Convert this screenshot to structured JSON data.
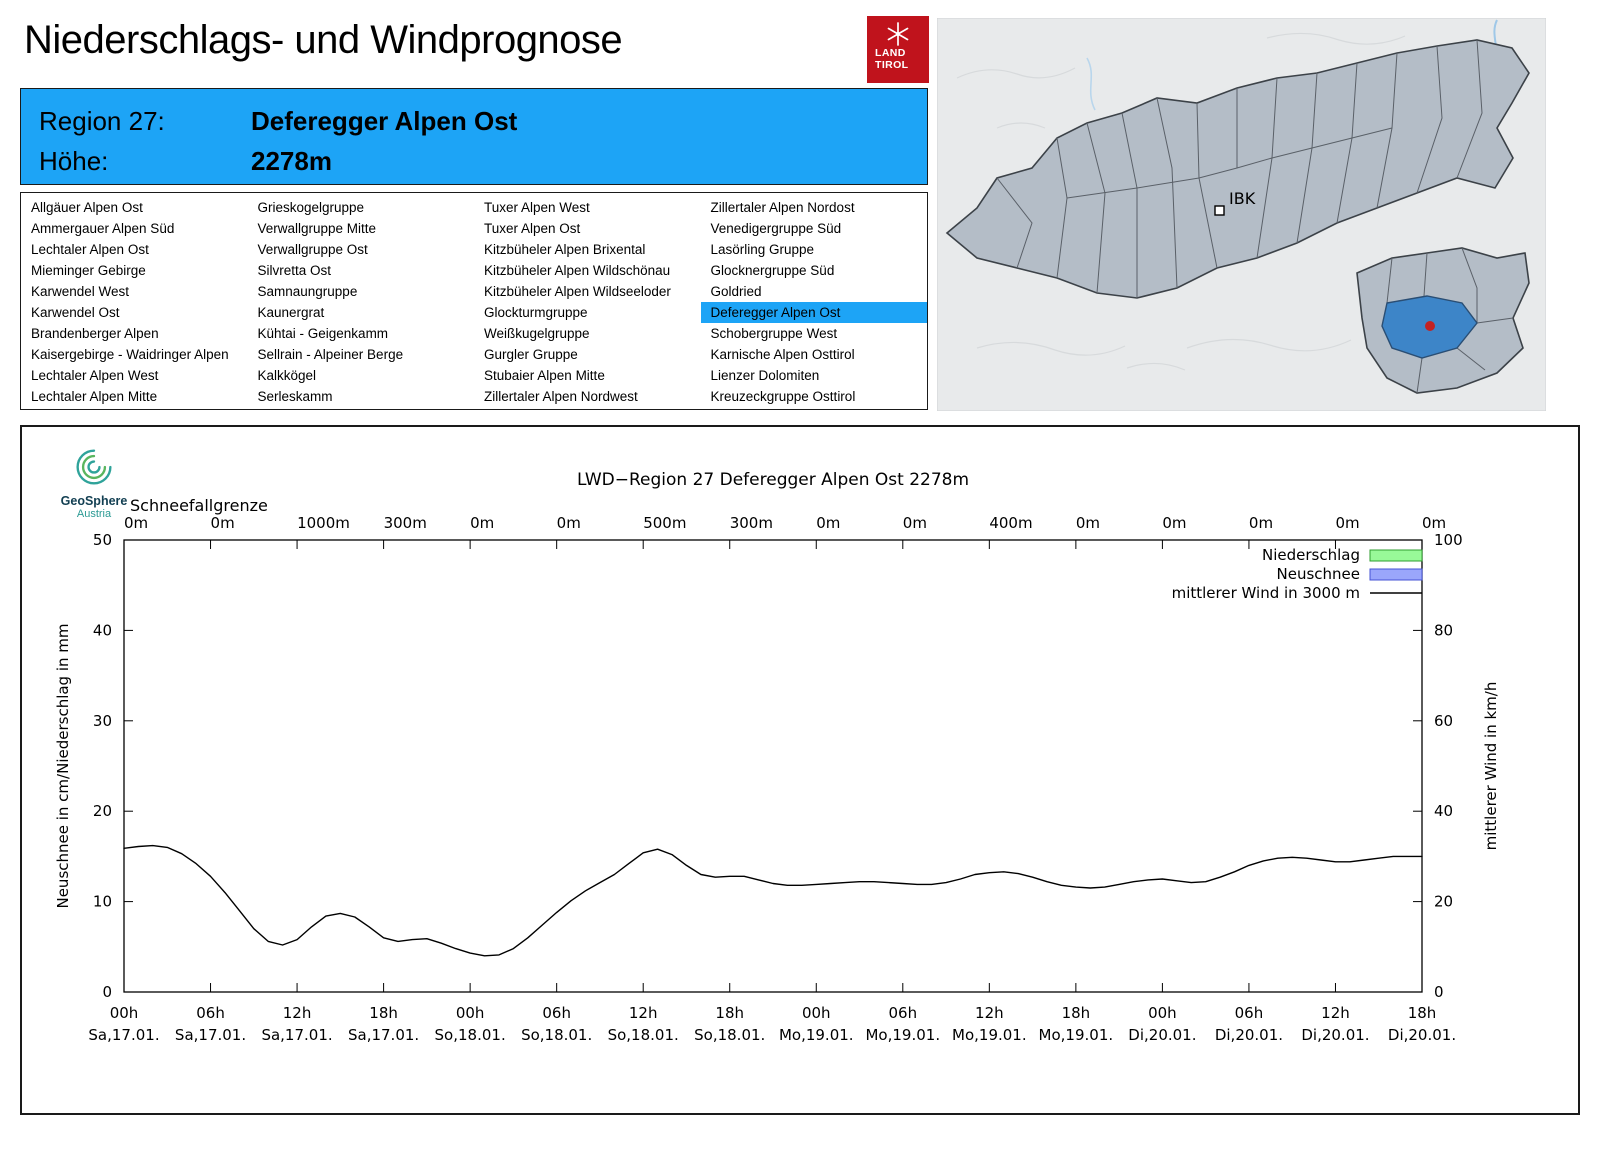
{
  "header": {
    "title": "Niederschlags- und Windprognose",
    "logo": {
      "line1": "LAND",
      "line2": "TIROL",
      "color": "#c0131c"
    }
  },
  "region_banner": {
    "background": "#1da4f6",
    "region_label": "Region 27:",
    "region_name": "Deferegger Alpen Ost",
    "altitude_label": "Höhe:",
    "altitude_value": "2278m"
  },
  "region_table": {
    "selected": "Deferegger Alpen Ost",
    "selected_color": "#1da4f6",
    "columns": [
      [
        "Allgäuer Alpen Ost",
        "Ammergauer Alpen Süd",
        "Lechtaler Alpen Ost",
        "Mieminger Gebirge",
        "Karwendel West",
        "Karwendel Ost",
        "Brandenberger Alpen",
        "Kaisergebirge - Waidringer Alpen",
        "Lechtaler Alpen West",
        "Lechtaler Alpen Mitte"
      ],
      [
        "Grieskogelgruppe",
        "Verwallgruppe Mitte",
        "Verwallgruppe Ost",
        "Silvretta Ost",
        "Samnaungruppe",
        "Kaunergrat",
        "Kühtai - Geigenkamm",
        "Sellrain - Alpeiner Berge",
        "Kalkkögel",
        "Serleskamm"
      ],
      [
        "Tuxer Alpen West",
        "Tuxer Alpen Ost",
        "Kitzbüheler Alpen Brixental",
        "Kitzbüheler Alpen Wildschönau",
        "Kitzbüheler Alpen Wildseeloder",
        "Glockturmgruppe",
        "Weißkugelgruppe",
        "Gurgler Gruppe",
        "Stubaier Alpen Mitte",
        "Zillertaler Alpen Nordwest"
      ],
      [
        "Zillertaler Alpen Nordost",
        "Venedigergruppe Süd",
        "Lasörling Gruppe",
        "Glocknergruppe Süd",
        "Goldried",
        "Deferegger Alpen Ost",
        "Schobergruppe West",
        "Karnische Alpen Osttirol",
        "Lienzer Dolomiten",
        "Kreuzeckgruppe Osttirol"
      ]
    ]
  },
  "map": {
    "city_label": "IBK",
    "highlight_color": "#3d85c8",
    "marker_color": "#c32222"
  },
  "chart_brand": {
    "name": "GeoSphere",
    "sub": "Austria"
  },
  "chart_data": {
    "type": "line",
    "title": "LWD−Region 27 Deferegger Alpen Ost 2278m",
    "ylabel_left": "Neuschnee in cm/Niederschlag in mm",
    "ylabel_right": "mittlerer Wind in km/h",
    "ylim_left": [
      0,
      50
    ],
    "ylim_right": [
      0,
      100
    ],
    "x_hours_range": [
      0,
      90
    ],
    "grid": false,
    "legend_position": "top-right",
    "schneefallgrenze_label": "Schneefallgrenze",
    "schneefallgrenze_values": [
      "0m",
      "0m",
      "1000m",
      "300m",
      "0m",
      "0m",
      "500m",
      "300m",
      "0m",
      "0m",
      "400m",
      "0m",
      "0m",
      "0m",
      "0m",
      "0m"
    ],
    "x_ticks": [
      {
        "hour": "00h",
        "day": "Sa,17.01."
      },
      {
        "hour": "06h",
        "day": "Sa,17.01."
      },
      {
        "hour": "12h",
        "day": "Sa,17.01."
      },
      {
        "hour": "18h",
        "day": "Sa,17.01."
      },
      {
        "hour": "00h",
        "day": "So,18.01."
      },
      {
        "hour": "06h",
        "day": "So,18.01."
      },
      {
        "hour": "12h",
        "day": "So,18.01."
      },
      {
        "hour": "18h",
        "day": "So,18.01."
      },
      {
        "hour": "00h",
        "day": "Mo,19.01."
      },
      {
        "hour": "06h",
        "day": "Mo,19.01."
      },
      {
        "hour": "12h",
        "day": "Mo,19.01."
      },
      {
        "hour": "18h",
        "day": "Mo,19.01."
      },
      {
        "hour": "00h",
        "day": "Di,20.01."
      },
      {
        "hour": "06h",
        "day": "Di,20.01."
      },
      {
        "hour": "12h",
        "day": "Di,20.01."
      },
      {
        "hour": "18h",
        "day": "Di,20.01."
      }
    ],
    "legend": [
      {
        "label": "Niederschlag",
        "type": "box",
        "fill": "#98f998",
        "stroke": "#2f9e2f"
      },
      {
        "label": "Neuschnee",
        "type": "box",
        "fill": "#9aa6fb",
        "stroke": "#4653d6"
      },
      {
        "label": "mittlerer Wind in 3000 m",
        "type": "line",
        "color": "#000000"
      }
    ],
    "wind_series": {
      "name": "mittlerer Wind in 3000 m",
      "start_hour": 0,
      "step_hours": 1,
      "values_kmh": [
        31.8,
        32.2,
        32.4,
        32.0,
        30.6,
        28.4,
        25.6,
        22.0,
        18.0,
        14.0,
        11.2,
        10.4,
        11.6,
        14.4,
        16.8,
        17.4,
        16.6,
        14.4,
        12.0,
        11.2,
        11.6,
        11.8,
        10.8,
        9.6,
        8.6,
        8.0,
        8.2,
        9.6,
        12.0,
        14.8,
        17.6,
        20.2,
        22.4,
        24.2,
        26.0,
        28.4,
        30.8,
        31.6,
        30.4,
        28.0,
        26.0,
        25.4,
        25.6,
        25.6,
        24.8,
        24.0,
        23.6,
        23.6,
        23.8,
        24.0,
        24.2,
        24.4,
        24.4,
        24.2,
        24.0,
        23.8,
        23.8,
        24.2,
        25.0,
        26.0,
        26.4,
        26.6,
        26.2,
        25.4,
        24.4,
        23.6,
        23.2,
        23.0,
        23.2,
        23.8,
        24.4,
        24.8,
        25.0,
        24.6,
        24.2,
        24.4,
        25.4,
        26.6,
        28.0,
        29.0,
        29.6,
        29.8,
        29.6,
        29.2,
        28.8,
        28.8,
        29.2,
        29.6,
        30.0,
        30.0,
        30.0
      ]
    },
    "precipitation_bars": [],
    "new_snow_bars": []
  }
}
